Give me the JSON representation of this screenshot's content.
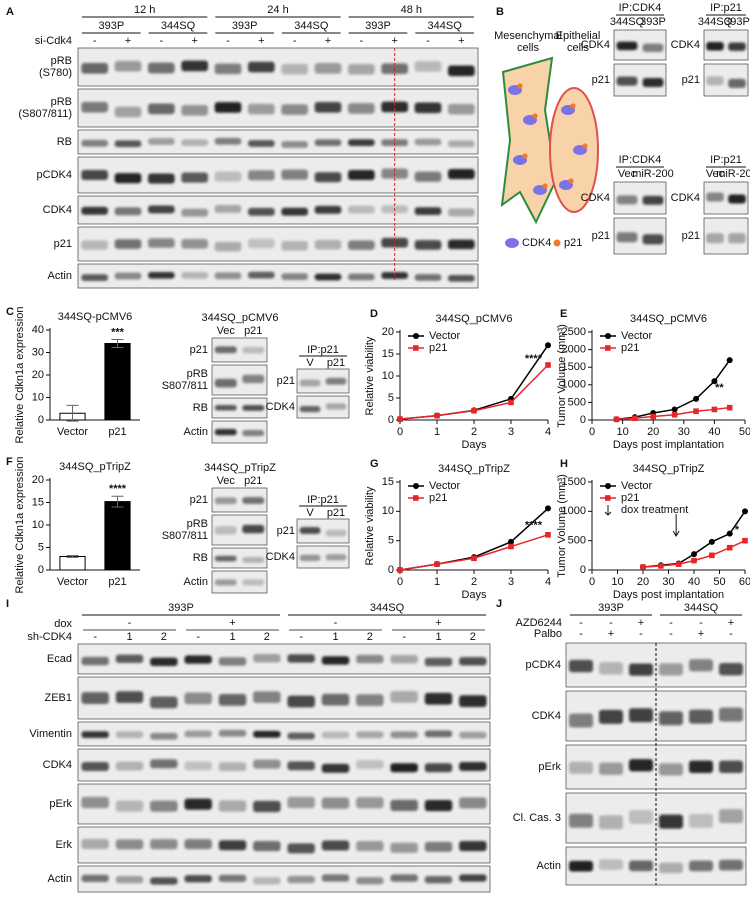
{
  "panel_a": {
    "letter": "A",
    "times": [
      "12 h",
      "24 h",
      "48 h"
    ],
    "lines": [
      "393P",
      "344SQ",
      "393P",
      "344SQ",
      "393P",
      "344SQ"
    ],
    "treatment": "si-Cdk4",
    "signs": [
      "-",
      "+",
      "-",
      "+",
      "-",
      "+",
      "-",
      "+",
      "-",
      "+",
      "-",
      "+"
    ],
    "rows": [
      [
        "pRB",
        "(S780)"
      ],
      [
        "pRB",
        "(S807/811)"
      ],
      [
        "RB"
      ],
      [
        "pCDK4"
      ],
      [
        "CDK4"
      ],
      [
        "p21"
      ],
      [
        "Actin"
      ]
    ]
  },
  "panel_b": {
    "letter": "B",
    "mesenchymal": [
      "Mesenchymal",
      "cells"
    ],
    "epithelial": [
      "Epithelial",
      "cells"
    ],
    "legend": [
      "CDK4",
      "p21"
    ],
    "lane_colors": [
      "#2e8b3e",
      "#e02020"
    ],
    "blots": [
      {
        "title": "IP:CDK4",
        "lanes": [
          "344SQ",
          "393P"
        ],
        "rows": [
          [
            "CDK4"
          ],
          [
            "p21"
          ]
        ]
      },
      {
        "title": "IP:p21",
        "lanes": [
          "344SQ",
          "393P"
        ],
        "rows": [
          [
            "CDK4"
          ],
          [
            "p21"
          ]
        ]
      },
      {
        "title": "IP:CDK4",
        "lanes": [
          "Vec",
          "miR-200"
        ],
        "rows": [
          [
            "CDK4"
          ],
          [
            "p21"
          ]
        ]
      },
      {
        "title": "IP:p21",
        "lanes": [
          "Vec",
          "miR-200"
        ],
        "rows": [
          [
            "CDK4"
          ],
          [
            "p21"
          ]
        ]
      }
    ]
  },
  "panel_c": {
    "blot": {
      "title": "344SQ_pCMV6",
      "lanes": [
        "Vec",
        "p21"
      ],
      "rows": [
        [
          "p21"
        ],
        [
          "pRB",
          "S807/811"
        ],
        [
          "RB"
        ],
        [
          "Actin"
        ]
      ]
    },
    "ip": {
      "title": "IP:p21",
      "lanes": [
        "V",
        "p21"
      ],
      "rows": [
        [
          "p21"
        ],
        [
          "CDK4"
        ]
      ]
    }
  },
  "panel_f": {
    "blot": {
      "title": "344SQ_pTripZ",
      "lanes": [
        "Vec",
        "p21"
      ],
      "rows": [
        [
          "p21"
        ],
        [
          "pRB",
          "S807/811"
        ],
        [
          "RB"
        ],
        [
          "Actin"
        ]
      ]
    },
    "ip": {
      "title": "IP:p21",
      "lanes": [
        "V",
        "p21"
      ],
      "rows": [
        [
          "p21"
        ],
        [
          "CDK4"
        ]
      ]
    }
  },
  "panel_i": {
    "letter": "I",
    "groups": [
      "393P",
      "344SQ"
    ],
    "dox_label": "dox",
    "dox": [
      "-",
      "+",
      "-",
      "+"
    ],
    "sh_label": "sh-CDK4",
    "sh": [
      "-",
      "1",
      "2",
      "-",
      "1",
      "2",
      "-",
      "1",
      "2",
      "-",
      "1",
      "2"
    ],
    "rows": [
      [
        "Ecad"
      ],
      [
        "ZEB1"
      ],
      [
        "Vimentin"
      ],
      [
        "CDK4"
      ],
      [
        "pErk"
      ],
      [
        "Erk"
      ],
      [
        "Actin"
      ]
    ]
  },
  "panel_j": {
    "letter": "J",
    "groups": [
      "393P",
      "344SQ"
    ],
    "treatments": [
      {
        "label": "AZD6244",
        "signs": [
          "-",
          "-",
          "+",
          "-",
          "-",
          "+"
        ]
      },
      {
        "label": "Palbo",
        "signs": [
          "-",
          "+",
          "-",
          "-",
          "+",
          "-"
        ]
      }
    ],
    "rows": [
      [
        "pCDK4"
      ],
      [
        "CDK4"
      ],
      [
        "pErk"
      ],
      [
        "Cl. Cas. 3"
      ],
      [
        "Actin"
      ]
    ]
  },
  "chart_data": [
    {
      "type": "bar",
      "panel": "C",
      "title": "344SQ-pCMV6",
      "ylabel": "Relative Cdkn1a expression",
      "categories": [
        "Vector",
        "p21"
      ],
      "values": [
        3,
        34
      ],
      "errors": [
        3.5,
        1.8
      ],
      "colors": [
        "#ffffff",
        "#000000"
      ],
      "annotation": "***",
      "ylim": [
        0,
        40
      ],
      "yticks": [
        0,
        10,
        20,
        30,
        40
      ]
    },
    {
      "type": "line",
      "panel": "D",
      "title": "344SQ_pCMV6",
      "xlabel": "Days",
      "ylabel": "Relative viability",
      "x": [
        0,
        1,
        2,
        3,
        4
      ],
      "series": [
        {
          "name": "Vector",
          "color": "#000000",
          "marker": "circle",
          "values": [
            0.2,
            1,
            2.2,
            4.8,
            17
          ]
        },
        {
          "name": "p21",
          "color": "#e8262a",
          "marker": "square",
          "values": [
            0.2,
            1,
            2.1,
            4,
            12.5
          ]
        }
      ],
      "annotation": "****",
      "xlim": [
        0,
        4
      ],
      "xticks": [
        0,
        1,
        2,
        3,
        4
      ],
      "ylim": [
        0,
        20
      ],
      "yticks": [
        0,
        5,
        10,
        15,
        20
      ]
    },
    {
      "type": "line",
      "panel": "E",
      "title": "344SQ_pCMV6",
      "xlabel": "Days post implantation",
      "ylabel": "Tumor Volume (mm³)",
      "x": [
        8,
        14,
        20,
        27,
        34,
        40,
        45
      ],
      "series": [
        {
          "name": "Vector",
          "color": "#000000",
          "marker": "circle",
          "values": [
            20,
            80,
            200,
            300,
            600,
            1100,
            1700
          ]
        },
        {
          "name": "p21",
          "color": "#e8262a",
          "marker": "square",
          "values": [
            20,
            50,
            100,
            150,
            250,
            300,
            350
          ]
        }
      ],
      "annotation": "**",
      "xlim": [
        0,
        50
      ],
      "xticks": [
        0,
        10,
        20,
        30,
        40,
        50
      ],
      "ylim": [
        0,
        2500
      ],
      "yticks": [
        0,
        500,
        1000,
        1500,
        2000,
        2500
      ]
    },
    {
      "type": "bar",
      "panel": "F",
      "title": "344SQ_pTripZ",
      "ylabel": "Relative Cdkn1a expression",
      "categories": [
        "Vector",
        "p21"
      ],
      "values": [
        3,
        15.2
      ],
      "errors": [
        0.2,
        1.2
      ],
      "colors": [
        "#ffffff",
        "#000000"
      ],
      "annotation": "****",
      "ylim": [
        0,
        20
      ],
      "yticks": [
        0,
        5,
        10,
        15,
        20
      ]
    },
    {
      "type": "line",
      "panel": "G",
      "title": "344SQ_pTripZ",
      "xlabel": "Days",
      "ylabel": "Relative viability",
      "x": [
        0,
        1,
        2,
        3,
        4
      ],
      "series": [
        {
          "name": "Vector",
          "color": "#000000",
          "marker": "circle",
          "values": [
            0,
            1,
            2.2,
            4.8,
            10.5
          ]
        },
        {
          "name": "p21",
          "color": "#e8262a",
          "marker": "square",
          "values": [
            0,
            1,
            2,
            4,
            6
          ]
        }
      ],
      "annotation": "****",
      "xlim": [
        0,
        4
      ],
      "xticks": [
        0,
        1,
        2,
        3,
        4
      ],
      "ylim": [
        0,
        15
      ],
      "yticks": [
        0,
        5,
        10,
        15
      ]
    },
    {
      "type": "line",
      "panel": "H",
      "title": "344SQ_pTripZ",
      "xlabel": "Days post implantation",
      "ylabel": "Tumor Volume (mm³)",
      "x": [
        20,
        27,
        34,
        40,
        47,
        54,
        60
      ],
      "series": [
        {
          "name": "Vector",
          "color": "#000000",
          "marker": "circle",
          "values": [
            50,
            80,
            110,
            270,
            480,
            620,
            1000
          ]
        },
        {
          "name": "p21",
          "color": "#e8262a",
          "marker": "square",
          "values": [
            50,
            70,
            100,
            160,
            250,
            380,
            500
          ]
        }
      ],
      "annotation": "*",
      "marker_label": "dox treatment",
      "marker_x": 33,
      "xlim": [
        0,
        60
      ],
      "xticks": [
        0,
        10,
        20,
        30,
        40,
        50,
        60
      ],
      "ylim": [
        0,
        1500
      ],
      "yticks": [
        0,
        500,
        1000,
        1500
      ]
    }
  ]
}
